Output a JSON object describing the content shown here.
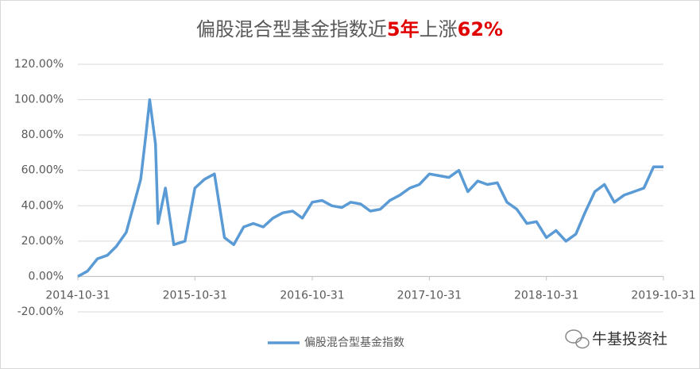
{
  "chart_data": {
    "type": "line",
    "title_parts": [
      {
        "text": "偏股混合型基金指数近",
        "color": "#595959",
        "weight": "normal"
      },
      {
        "text": "5年",
        "color": "#e00000",
        "weight": "bold"
      },
      {
        "text": "上涨",
        "color": "#595959",
        "weight": "normal"
      },
      {
        "text": "62%",
        "color": "#e00000",
        "weight": "bold"
      }
    ],
    "x": [
      "2014-10-31",
      "2014-11-30",
      "2014-12-31",
      "2015-01-31",
      "2015-02-28",
      "2015-03-31",
      "2015-04-30",
      "2015-05-15",
      "2015-05-31",
      "2015-06-12",
      "2015-06-30",
      "2015-07-08",
      "2015-07-31",
      "2015-08-26",
      "2015-09-30",
      "2015-10-31",
      "2015-11-30",
      "2015-12-31",
      "2016-01-31",
      "2016-02-29",
      "2016-03-31",
      "2016-04-30",
      "2016-05-31",
      "2016-06-30",
      "2016-07-31",
      "2016-08-31",
      "2016-09-30",
      "2016-10-31",
      "2016-11-30",
      "2016-12-31",
      "2017-01-31",
      "2017-02-28",
      "2017-03-31",
      "2017-04-30",
      "2017-05-31",
      "2017-06-30",
      "2017-07-31",
      "2017-08-31",
      "2017-09-30",
      "2017-10-31",
      "2017-11-30",
      "2017-12-31",
      "2018-01-31",
      "2018-02-28",
      "2018-03-31",
      "2018-04-30",
      "2018-05-31",
      "2018-06-30",
      "2018-07-31",
      "2018-08-31",
      "2018-09-30",
      "2018-10-31",
      "2018-11-30",
      "2018-12-31",
      "2019-01-31",
      "2019-02-28",
      "2019-03-31",
      "2019-04-30",
      "2019-05-31",
      "2019-06-30",
      "2019-07-31",
      "2019-08-31",
      "2019-09-30",
      "2019-10-31"
    ],
    "series": [
      {
        "name": "偏股混合型基金指数",
        "color": "#5b9bd5",
        "values": [
          0,
          3,
          10,
          12,
          17,
          25,
          45,
          55,
          80,
          100,
          75,
          30,
          50,
          18,
          20,
          50,
          55,
          58,
          22,
          18,
          28,
          30,
          28,
          33,
          36,
          37,
          33,
          42,
          43,
          40,
          39,
          42,
          41,
          37,
          38,
          43,
          46,
          50,
          52,
          58,
          57,
          56,
          60,
          48,
          54,
          52,
          53,
          42,
          38,
          30,
          31,
          22,
          26,
          20,
          24,
          36,
          48,
          52,
          42,
          46,
          48,
          50,
          62,
          62
        ]
      }
    ],
    "xlim": [
      "2014-10-31",
      "2019-10-31"
    ],
    "xticks": [
      "2014-10-31",
      "2015-10-31",
      "2016-10-31",
      "2017-10-31",
      "2018-10-31",
      "2019-10-31"
    ],
    "ylim": [
      -20,
      120
    ],
    "yticks": [
      {
        "value": -20,
        "label": "-20.00%"
      },
      {
        "value": 0,
        "label": "0.00%"
      },
      {
        "value": 20,
        "label": "20.00%"
      },
      {
        "value": 40,
        "label": "40.00%"
      },
      {
        "value": 60,
        "label": "60.00%"
      },
      {
        "value": 80,
        "label": "80.00%"
      },
      {
        "value": 100,
        "label": "100.00%"
      },
      {
        "value": 120,
        "label": "120.00%"
      }
    ],
    "grid": true,
    "watermark": "牛基投资社"
  }
}
